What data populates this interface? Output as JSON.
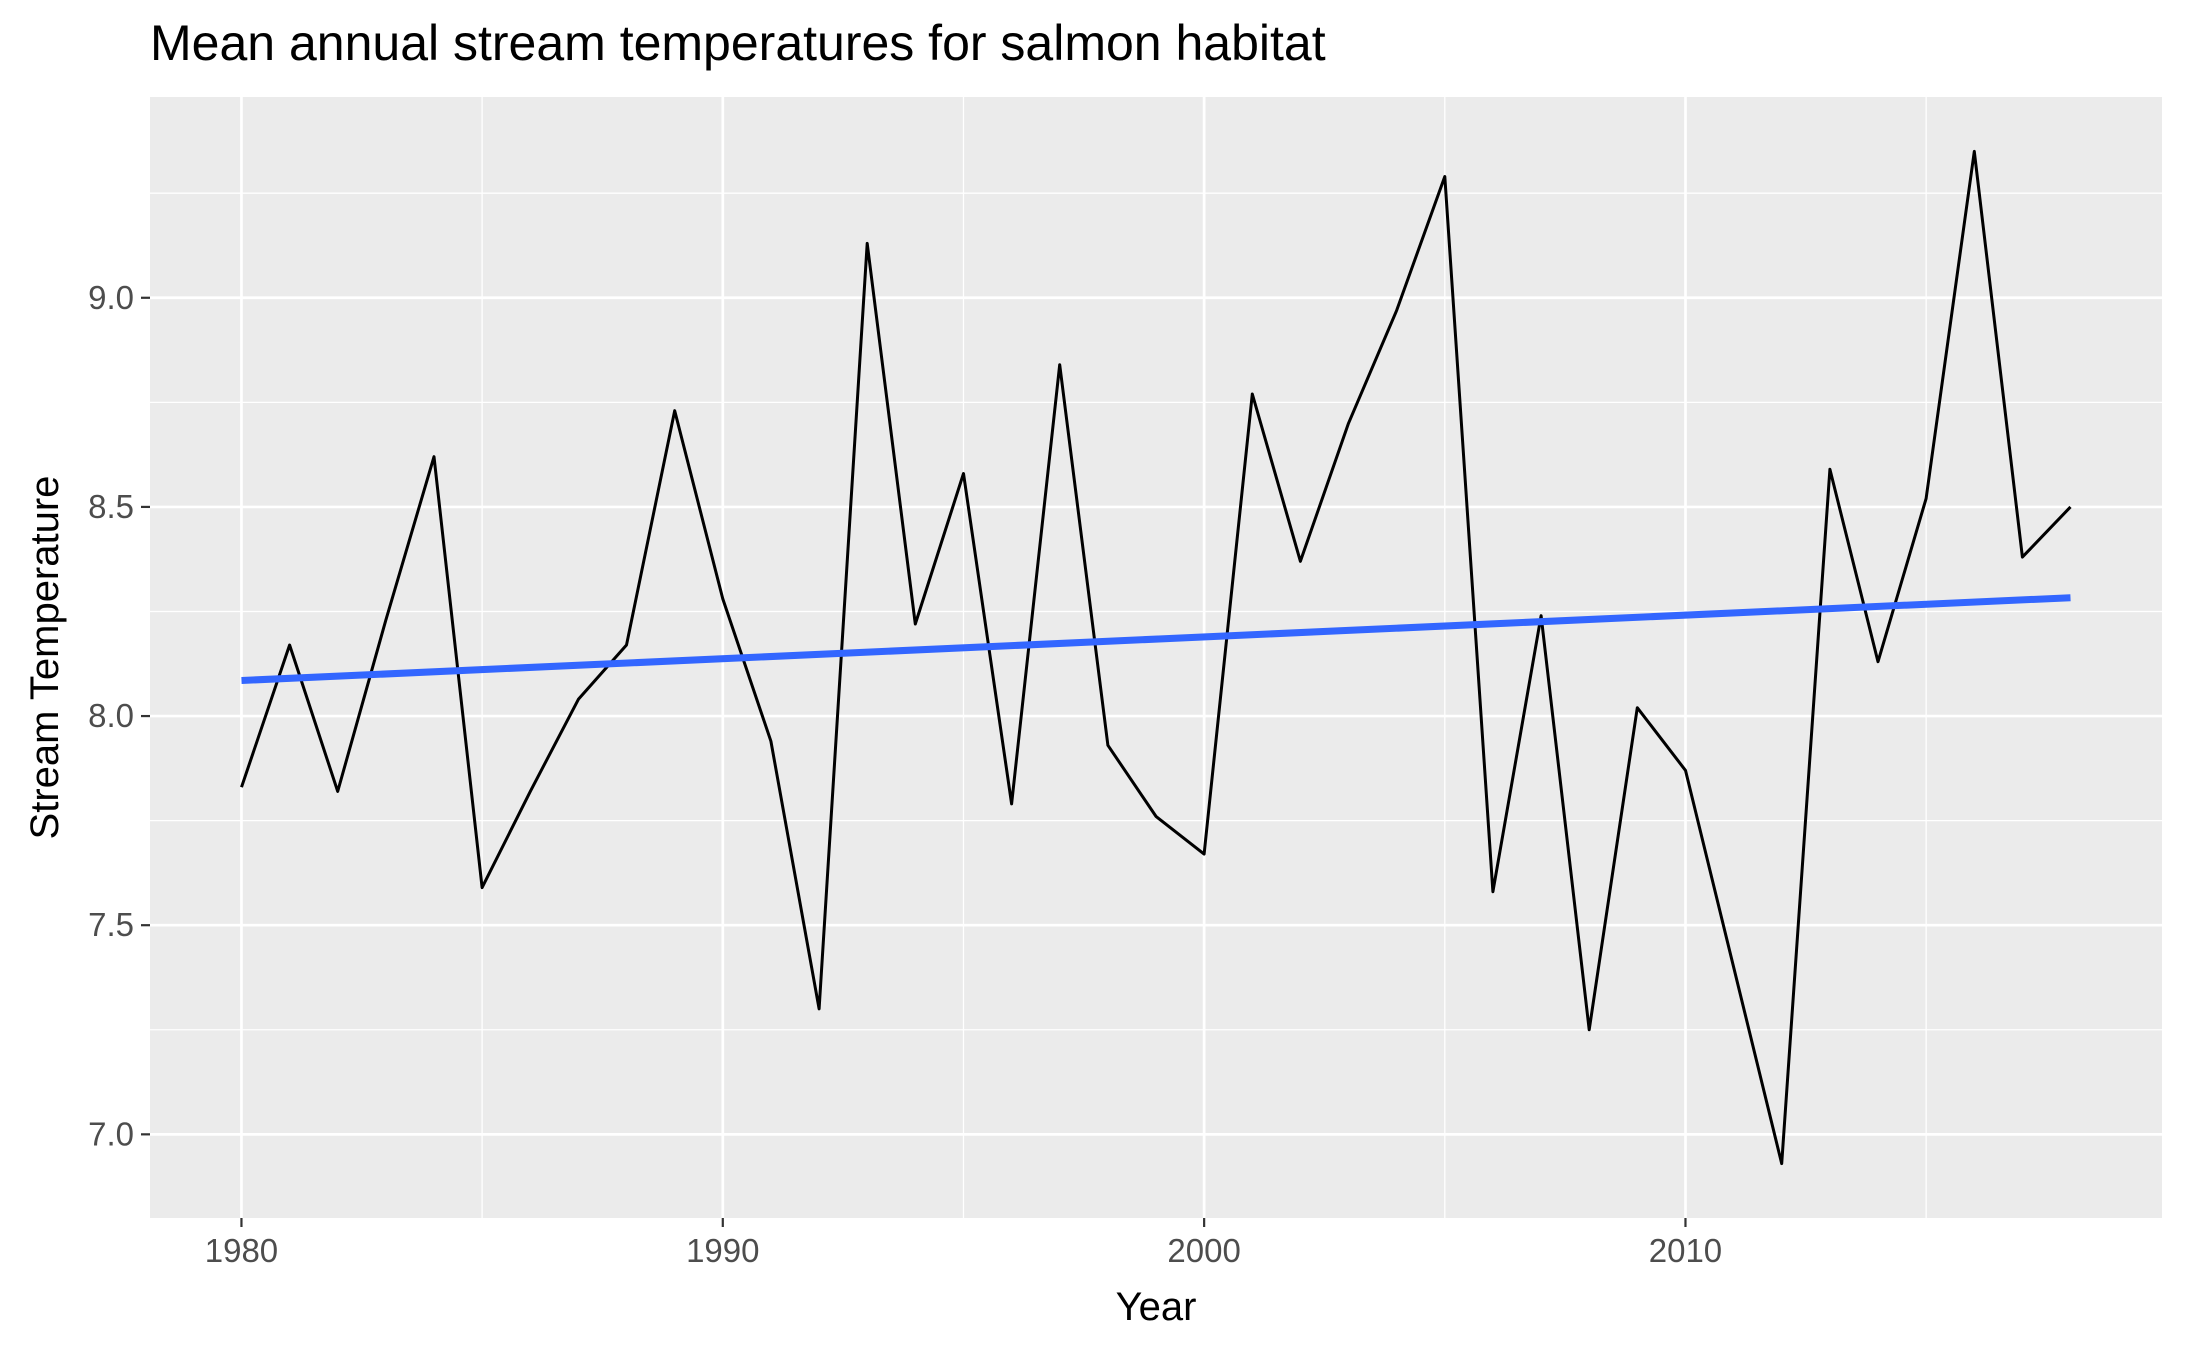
{
  "chart_data": {
    "type": "line",
    "title": "Mean annual stream temperatures for salmon habitat",
    "xlabel": "Year",
    "ylabel": "Stream Temperature",
    "xlim": [
      1978.1,
      2019.9
    ],
    "ylim": [
      6.8,
      9.48
    ],
    "x_ticks": [
      1980,
      1990,
      2000,
      2010
    ],
    "x_tick_labels": [
      "1980",
      "1990",
      "2000",
      "2010"
    ],
    "y_ticks": [
      7.0,
      7.5,
      8.0,
      8.5,
      9.0
    ],
    "y_tick_labels": [
      "7.0",
      "7.5",
      "8.0",
      "8.5",
      "9.0"
    ],
    "grid": true,
    "background": "#ebebeb",
    "series": [
      {
        "kind": "line",
        "color": "#000000",
        "x": [
          1980,
          1981,
          1982,
          1983,
          1984,
          1985,
          1986,
          1987,
          1988,
          1989,
          1990,
          1991,
          1992,
          1993,
          1994,
          1995,
          1996,
          1997,
          1998,
          1999,
          2000,
          2001,
          2002,
          2003,
          2004,
          2005,
          2006,
          2007,
          2008,
          2009,
          2010,
          2011,
          2012,
          2013,
          2014,
          2015,
          2016,
          2017,
          2018
        ],
        "y": [
          7.83,
          8.17,
          7.82,
          8.23,
          8.62,
          7.59,
          7.82,
          8.04,
          8.17,
          8.73,
          8.28,
          7.94,
          7.3,
          9.13,
          8.22,
          8.58,
          7.79,
          8.84,
          7.93,
          7.76,
          7.67,
          8.77,
          8.37,
          8.7,
          8.97,
          9.29,
          7.58,
          8.24,
          7.25,
          8.02,
          7.87,
          7.4,
          6.93,
          8.59,
          8.13,
          8.52,
          9.35,
          8.38,
          8.5
        ]
      },
      {
        "kind": "trend",
        "color": "#3366ff",
        "x": [
          1980,
          2018
        ],
        "y": [
          8.085,
          8.283
        ]
      }
    ]
  }
}
